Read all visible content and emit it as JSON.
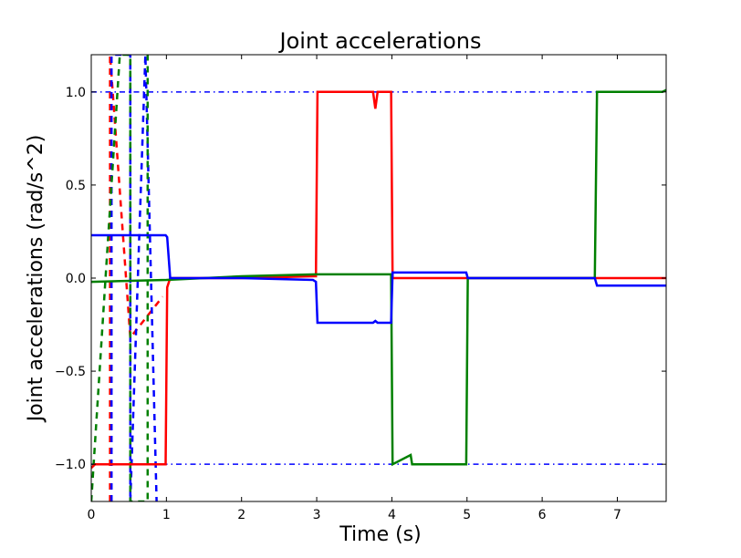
{
  "chart_data": {
    "type": "line",
    "title": "Joint accelerations",
    "xlabel": "Time (s)",
    "ylabel": "Joint accelerations (rad/s^2)",
    "xlim": [
      0,
      7.65
    ],
    "ylim": [
      -1.2,
      1.2
    ],
    "xticks": [
      0,
      1,
      2,
      3,
      4,
      5,
      6,
      7
    ],
    "xtick_labels": [
      "0",
      "1",
      "2",
      "3",
      "4",
      "5",
      "6",
      "7"
    ],
    "yticks": [
      -1.0,
      -0.5,
      0.0,
      0.5,
      1.0
    ],
    "ytick_labels": [
      "−1.0",
      "−0.5",
      "0.0",
      "0.5",
      "1.0"
    ],
    "grid": false,
    "legend": null,
    "reference_lines": [
      {
        "name": "upper limit",
        "y": 1.0,
        "color": "#0000ff",
        "style": "dashdot"
      },
      {
        "name": "lower limit",
        "y": -1.0,
        "color": "#0000ff",
        "style": "dashdot"
      }
    ],
    "series": [
      {
        "name": "joint 1 (solid red)",
        "color": "#ff0000",
        "style": "solid",
        "x": [
          0,
          0.05,
          0.1,
          0.99,
          1.01,
          1.05,
          2.0,
          2.95,
          2.99,
          3.01,
          3.75,
          3.78,
          3.81,
          3.99,
          4.01,
          7.65
        ],
        "y": [
          -1.02,
          -1.0,
          -1.0,
          -1.0,
          -0.05,
          0.0,
          0.0,
          0.01,
          0.01,
          1.0,
          1.0,
          0.91,
          1.0,
          1.0,
          0.0,
          0.0
        ]
      },
      {
        "name": "joint 2 (solid blue)",
        "color": "#0000ff",
        "style": "solid",
        "x": [
          0,
          0.99,
          1.01,
          1.05,
          2.0,
          2.95,
          2.99,
          3.01,
          3.75,
          3.78,
          3.81,
          3.99,
          4.01,
          4.2,
          4.99,
          5.01,
          6.7,
          6.73,
          7.65
        ],
        "y": [
          0.23,
          0.23,
          0.22,
          0.0,
          0.0,
          -0.01,
          -0.02,
          -0.24,
          -0.24,
          -0.23,
          -0.24,
          -0.24,
          0.03,
          0.03,
          0.03,
          0.0,
          0.0,
          -0.04,
          -0.04
        ],
        "note": "series starts at 0.23 and steps at t=1s, t=3s, t=4s, t=5s, t=6.7s"
      },
      {
        "name": "joint 3 (solid green)",
        "color": "#008000",
        "style": "solid",
        "x": [
          0,
          1.0,
          2.0,
          2.99,
          3.75,
          3.99,
          4.01,
          4.25,
          4.27,
          4.99,
          5.01,
          6.7,
          6.73,
          7.6,
          7.65
        ],
        "y": [
          -0.02,
          -0.01,
          0.01,
          0.02,
          0.02,
          0.02,
          -1.0,
          -0.95,
          -1.0,
          -1.0,
          0.0,
          0.0,
          1.0,
          1.0,
          1.01
        ]
      },
      {
        "name": "joint 1 (dashed red)",
        "color": "#ff0000",
        "style": "dashed",
        "x": [
          0.25,
          0.25,
          0.52,
          0.95
        ],
        "y": [
          -1.2,
          1.2,
          -0.32,
          -0.1
        ],
        "note": "steep vertical swings near t=0.25s then ramp from t~0.52 to ~0.95"
      },
      {
        "name": "joint 2 (dashed blue)",
        "color": "#0000ff",
        "style": "dashed",
        "x": [
          0.27,
          0.27,
          0.52,
          0.52,
          0.72,
          0.87
        ],
        "y": [
          -1.2,
          1.2,
          1.2,
          -1.2,
          1.2,
          -1.2
        ]
      },
      {
        "name": "joint 3 (dashed green)",
        "color": "#008000",
        "style": "dashed",
        "x": [
          0.0,
          0.38,
          0.52,
          0.52,
          0.75,
          0.75
        ],
        "y": [
          -1.2,
          1.2,
          1.2,
          -1.2,
          -1.2,
          1.2
        ]
      }
    ]
  }
}
